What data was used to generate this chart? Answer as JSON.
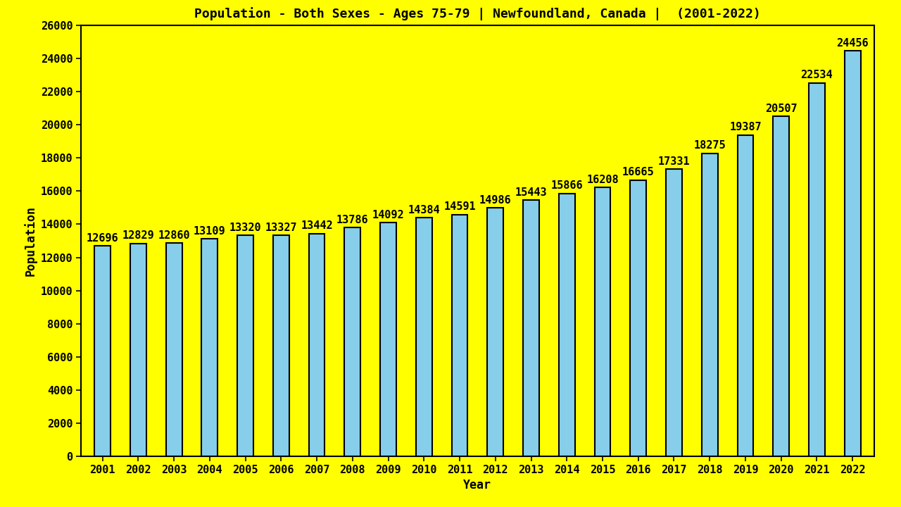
{
  "title": "Population - Both Sexes - Ages 75-79 | Newfoundland, Canada |  (2001-2022)",
  "xlabel": "Year",
  "ylabel": "Population",
  "background_color": "#FFFF00",
  "bar_color": "#87CEEB",
  "bar_edge_color": "#000000",
  "years": [
    2001,
    2002,
    2003,
    2004,
    2005,
    2006,
    2007,
    2008,
    2009,
    2010,
    2011,
    2012,
    2013,
    2014,
    2015,
    2016,
    2017,
    2018,
    2019,
    2020,
    2021,
    2022
  ],
  "values": [
    12696,
    12829,
    12860,
    13109,
    13320,
    13327,
    13442,
    13786,
    14092,
    14384,
    14591,
    14986,
    15443,
    15866,
    16208,
    16665,
    17331,
    18275,
    19387,
    20507,
    22534,
    24456
  ],
  "ylim": [
    0,
    26000
  ],
  "yticks": [
    0,
    2000,
    4000,
    6000,
    8000,
    10000,
    12000,
    14000,
    16000,
    18000,
    20000,
    22000,
    24000,
    26000
  ],
  "title_fontsize": 13,
  "label_fontsize": 12,
  "tick_fontsize": 11,
  "annotation_fontsize": 11,
  "bar_width": 0.45
}
